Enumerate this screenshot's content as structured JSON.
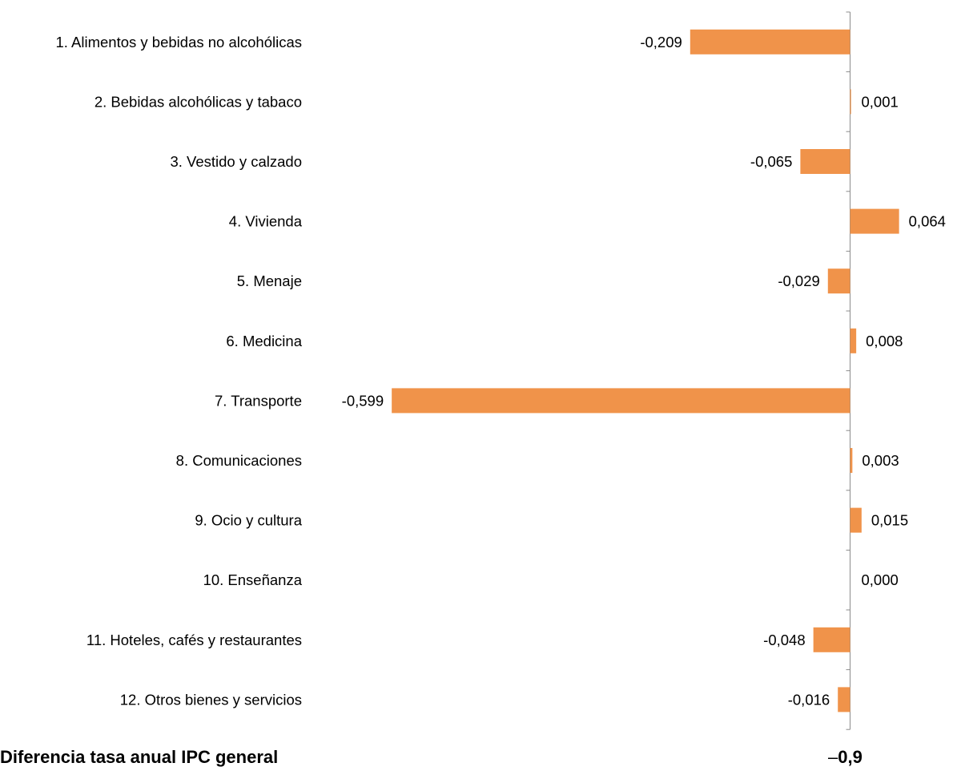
{
  "chart_data": {
    "type": "bar",
    "orientation": "horizontal",
    "categories": [
      "1. Alimentos y bebidas no alcohólicas",
      "2. Bebidas alcohólicas y tabaco",
      "3. Vestido y calzado",
      "4. Vivienda",
      "5. Menaje",
      "6. Medicina",
      "7. Transporte",
      "8. Comunicaciones",
      "9. Ocio y cultura",
      "10. Enseñanza",
      "11. Hoteles, cafés y restaurantes",
      "12. Otros bienes y servicios"
    ],
    "values": [
      -0.209,
      0.001,
      -0.065,
      0.064,
      -0.029,
      0.008,
      -0.599,
      0.003,
      0.015,
      0.0,
      -0.048,
      -0.016
    ],
    "data_labels": [
      "-0,209",
      "0,001",
      "-0,065",
      "0,064",
      "-0,029",
      "0,008",
      "-0,599",
      "0,003",
      "0,015",
      "0,000",
      "-0,048",
      "-0,016"
    ],
    "bar_color": "#F0934A",
    "axis_color": "#8C8C8C",
    "grid": false,
    "legend": "none"
  },
  "footer": {
    "label": "Diferencia tasa anual IPC general",
    "value_dash": "–",
    "value": "0,9"
  }
}
